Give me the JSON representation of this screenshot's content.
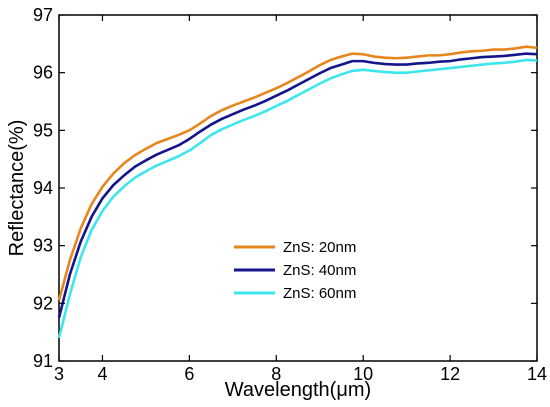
{
  "chart_data": {
    "type": "line",
    "title": "",
    "xlabel": "Wavelength(μm)",
    "ylabel": "Reflectance(%)",
    "xlim": [
      3,
      14
    ],
    "ylim": [
      91,
      97
    ],
    "x_ticks": [
      "3",
      "4",
      "6",
      "8",
      "10",
      "12",
      "14"
    ],
    "y_ticks": [
      "91",
      "92",
      "93",
      "94",
      "95",
      "96",
      "97"
    ],
    "grid": false,
    "legend_position": "lower-center",
    "series": [
      {
        "name": "ZnS: 20nm",
        "color": "#E8861E",
        "x": [
          3.0,
          3.25,
          3.5,
          3.75,
          4.0,
          4.25,
          4.5,
          4.75,
          5.0,
          5.25,
          5.5,
          5.75,
          6.0,
          6.25,
          6.5,
          6.75,
          7.0,
          7.25,
          7.5,
          7.75,
          8.0,
          8.25,
          8.5,
          8.75,
          9.0,
          9.25,
          9.5,
          9.75,
          10.0,
          10.25,
          10.5,
          10.75,
          11.0,
          11.25,
          11.5,
          11.75,
          12.0,
          12.25,
          12.5,
          12.75,
          13.0,
          13.25,
          13.5,
          13.75,
          14.0
        ],
        "values": [
          92.05,
          92.75,
          93.3,
          93.72,
          94.02,
          94.25,
          94.43,
          94.57,
          94.68,
          94.78,
          94.85,
          94.92,
          95.0,
          95.12,
          95.25,
          95.35,
          95.43,
          95.5,
          95.57,
          95.65,
          95.73,
          95.82,
          95.92,
          96.02,
          96.13,
          96.22,
          96.28,
          96.33,
          96.32,
          96.28,
          96.26,
          96.25,
          96.26,
          96.28,
          96.3,
          96.3,
          96.32,
          96.35,
          96.37,
          96.38,
          96.4,
          96.4,
          96.42,
          96.45,
          96.43
        ]
      },
      {
        "name": "ZnS: 40nm",
        "color": "#14148C",
        "x": [
          3.0,
          3.25,
          3.5,
          3.75,
          4.0,
          4.25,
          4.5,
          4.75,
          5.0,
          5.25,
          5.5,
          5.75,
          6.0,
          6.25,
          6.5,
          6.75,
          7.0,
          7.25,
          7.5,
          7.75,
          8.0,
          8.25,
          8.5,
          8.75,
          9.0,
          9.25,
          9.5,
          9.75,
          10.0,
          10.25,
          10.5,
          10.75,
          11.0,
          11.25,
          11.5,
          11.75,
          12.0,
          12.25,
          12.5,
          12.75,
          13.0,
          13.25,
          13.5,
          13.75,
          14.0
        ],
        "values": [
          91.75,
          92.5,
          93.07,
          93.5,
          93.82,
          94.05,
          94.22,
          94.37,
          94.48,
          94.58,
          94.66,
          94.74,
          94.85,
          94.98,
          95.1,
          95.2,
          95.28,
          95.36,
          95.43,
          95.51,
          95.6,
          95.69,
          95.79,
          95.89,
          95.99,
          96.08,
          96.14,
          96.2,
          96.2,
          96.17,
          96.15,
          96.14,
          96.14,
          96.16,
          96.17,
          96.19,
          96.2,
          96.23,
          96.25,
          96.27,
          96.28,
          96.29,
          96.31,
          96.33,
          96.32
        ]
      },
      {
        "name": "ZnS: 60nm",
        "color": "#3CE6EC",
        "x": [
          3.0,
          3.25,
          3.5,
          3.75,
          4.0,
          4.25,
          4.5,
          4.75,
          5.0,
          5.25,
          5.5,
          5.75,
          6.0,
          6.25,
          6.5,
          6.75,
          7.0,
          7.25,
          7.5,
          7.75,
          8.0,
          8.25,
          8.5,
          8.75,
          9.0,
          9.25,
          9.5,
          9.75,
          10.0,
          10.25,
          10.5,
          10.75,
          11.0,
          11.25,
          11.5,
          11.75,
          12.0,
          12.25,
          12.5,
          12.75,
          13.0,
          13.25,
          13.5,
          13.75,
          14.0
        ],
        "values": [
          91.4,
          92.15,
          92.8,
          93.27,
          93.6,
          93.85,
          94.03,
          94.18,
          94.29,
          94.39,
          94.47,
          94.55,
          94.65,
          94.78,
          94.92,
          95.02,
          95.1,
          95.18,
          95.25,
          95.33,
          95.42,
          95.51,
          95.61,
          95.71,
          95.81,
          95.9,
          95.97,
          96.03,
          96.05,
          96.03,
          96.01,
          96.0,
          96.0,
          96.02,
          96.04,
          96.06,
          96.08,
          96.1,
          96.12,
          96.14,
          96.16,
          96.17,
          96.19,
          96.22,
          96.21
        ]
      }
    ]
  }
}
